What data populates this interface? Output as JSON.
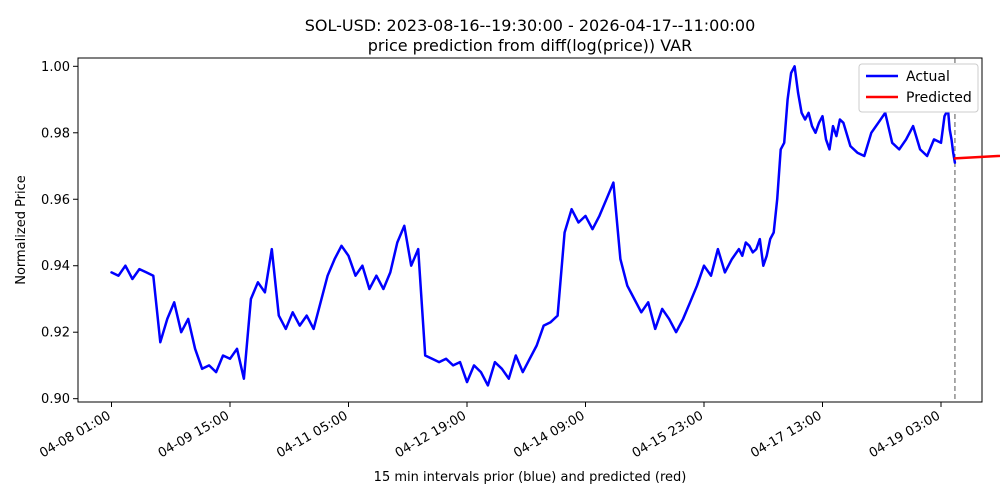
{
  "chart_data": {
    "type": "line",
    "title": "SOL-USD: 2023-08-16--19:30:00 - 2026-04-17--11:00:00",
    "subtitle": "price prediction from diff(log(price)) VAR",
    "xlabel": "15 min intervals prior (blue) and predicted (red)",
    "ylabel": "Normalized Price",
    "x_ticks": [
      "04-08 01:00",
      "04-09 15:00",
      "04-11 05:00",
      "04-12 19:00",
      "04-14 09:00",
      "04-15 23:00",
      "04-17 13:00",
      "04-19 03:00"
    ],
    "y_ticks": [
      "0.90",
      "0.92",
      "0.94",
      "0.96",
      "0.98",
      "1.00"
    ],
    "ylim": [
      0.899,
      1.0025
    ],
    "grid": false,
    "legend_position": "top-right",
    "forecast_start": "04-17 11:00",
    "series": [
      {
        "name": "Actual",
        "color": "#0000ff",
        "x_hours": [
          0,
          2,
          4,
          6,
          8,
          10,
          12,
          14,
          16,
          18,
          20,
          22,
          24,
          26,
          28,
          30,
          32,
          34,
          36,
          38,
          40,
          42,
          44,
          46,
          48,
          50,
          52,
          54,
          56,
          58,
          60,
          62,
          64,
          66,
          68,
          70,
          72,
          74,
          76,
          78,
          80,
          82,
          84,
          86,
          88,
          90,
          92,
          94,
          96,
          98,
          100,
          102,
          104,
          106,
          108,
          110,
          112,
          114,
          116,
          118,
          120,
          122,
          124,
          126,
          128,
          130,
          132,
          134,
          136,
          138,
          140,
          142,
          144,
          146,
          148,
          150,
          152,
          154,
          156,
          158,
          160,
          162,
          164,
          166,
          168,
          170,
          172,
          174,
          176,
          178,
          180,
          181,
          182,
          183,
          184,
          185,
          186,
          187,
          188,
          189,
          190,
          191,
          192,
          193,
          194,
          195,
          196,
          197,
          198,
          199,
          200,
          201,
          202,
          203,
          204,
          205,
          206,
          207,
          208,
          209,
          210,
          212,
          214,
          216,
          218,
          220,
          222,
          224,
          226,
          228,
          230,
          232,
          234,
          236,
          238,
          239,
          240,
          240.5,
          241,
          241.5,
          242
        ],
        "values": [
          0.938,
          0.937,
          0.94,
          0.936,
          0.939,
          0.938,
          0.937,
          0.917,
          0.924,
          0.929,
          0.92,
          0.924,
          0.915,
          0.909,
          0.91,
          0.908,
          0.913,
          0.912,
          0.915,
          0.906,
          0.93,
          0.935,
          0.932,
          0.945,
          0.925,
          0.921,
          0.926,
          0.922,
          0.925,
          0.921,
          0.929,
          0.937,
          0.942,
          0.946,
          0.943,
          0.937,
          0.94,
          0.933,
          0.937,
          0.933,
          0.938,
          0.947,
          0.952,
          0.94,
          0.945,
          0.913,
          0.912,
          0.911,
          0.912,
          0.91,
          0.911,
          0.905,
          0.91,
          0.908,
          0.904,
          0.911,
          0.909,
          0.906,
          0.913,
          0.908,
          0.912,
          0.916,
          0.922,
          0.923,
          0.925,
          0.95,
          0.957,
          0.953,
          0.955,
          0.951,
          0.955,
          0.96,
          0.965,
          0.942,
          0.934,
          0.93,
          0.926,
          0.929,
          0.921,
          0.927,
          0.924,
          0.92,
          0.924,
          0.929,
          0.934,
          0.94,
          0.937,
          0.945,
          0.938,
          0.942,
          0.945,
          0.943,
          0.947,
          0.946,
          0.944,
          0.945,
          0.948,
          0.94,
          0.943,
          0.948,
          0.95,
          0.96,
          0.975,
          0.977,
          0.99,
          0.998,
          1.0,
          0.992,
          0.986,
          0.984,
          0.986,
          0.982,
          0.98,
          0.983,
          0.985,
          0.978,
          0.975,
          0.982,
          0.979,
          0.984,
          0.983,
          0.976,
          0.974,
          0.973,
          0.98,
          0.983,
          0.986,
          0.977,
          0.975,
          0.978,
          0.982,
          0.975,
          0.973,
          0.978,
          0.977,
          0.985,
          0.987,
          0.981,
          0.978,
          0.974,
          0.971
        ]
      },
      {
        "name": "Predicted",
        "color": "#ff0000",
        "x_hours": [
          242,
          284
        ],
        "values": [
          0.9723,
          0.9748
        ]
      }
    ]
  }
}
